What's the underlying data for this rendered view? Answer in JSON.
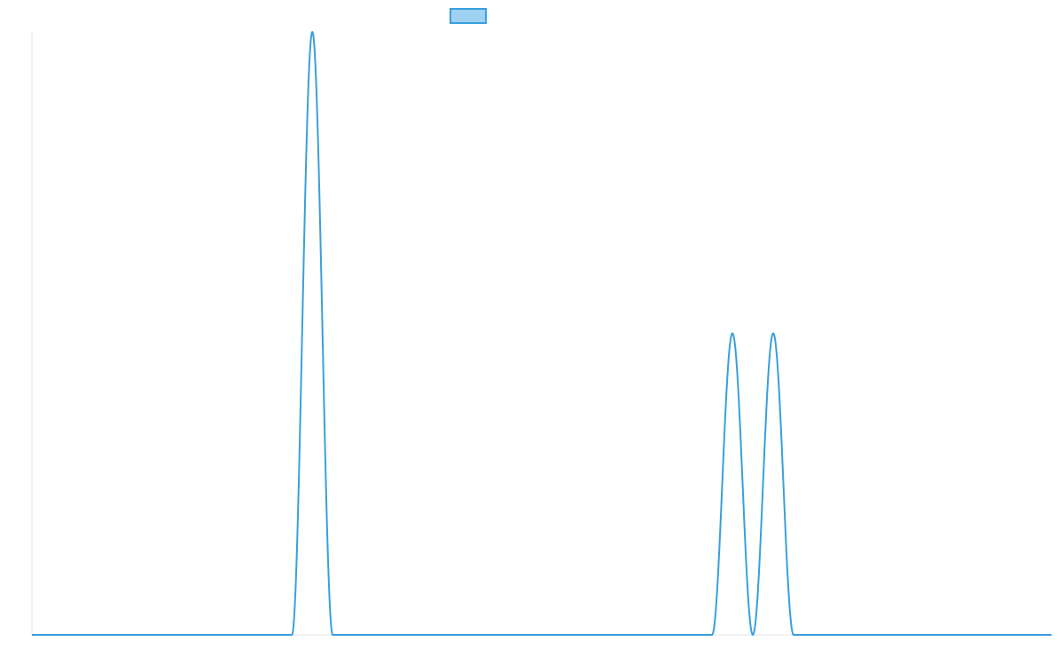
{
  "chart_data": {
    "type": "line",
    "title": "",
    "xlabel": "",
    "ylabel": "",
    "legend": {
      "placement": "top-center",
      "entries": [
        ""
      ]
    },
    "grid": false,
    "xlim": [
      0,
      100
    ],
    "ylim": [
      0,
      1
    ],
    "series": [
      {
        "color": "#3a9fdc",
        "fill": "#9fd1f3",
        "peaks": [
          {
            "center": 27.5,
            "height": 1.0,
            "half_width": 2.0
          },
          {
            "center": 68.7,
            "height": 0.5,
            "half_width": 2.0
          },
          {
            "center": 72.7,
            "height": 0.5,
            "half_width": 2.0
          }
        ],
        "x": [
          0,
          25.5,
          27.5,
          29.5,
          66.7,
          68.7,
          70.7,
          72.7,
          74.7,
          100
        ],
        "values": [
          0,
          0,
          1.0,
          0,
          0,
          0.5,
          0,
          0.5,
          0,
          0
        ]
      }
    ]
  }
}
